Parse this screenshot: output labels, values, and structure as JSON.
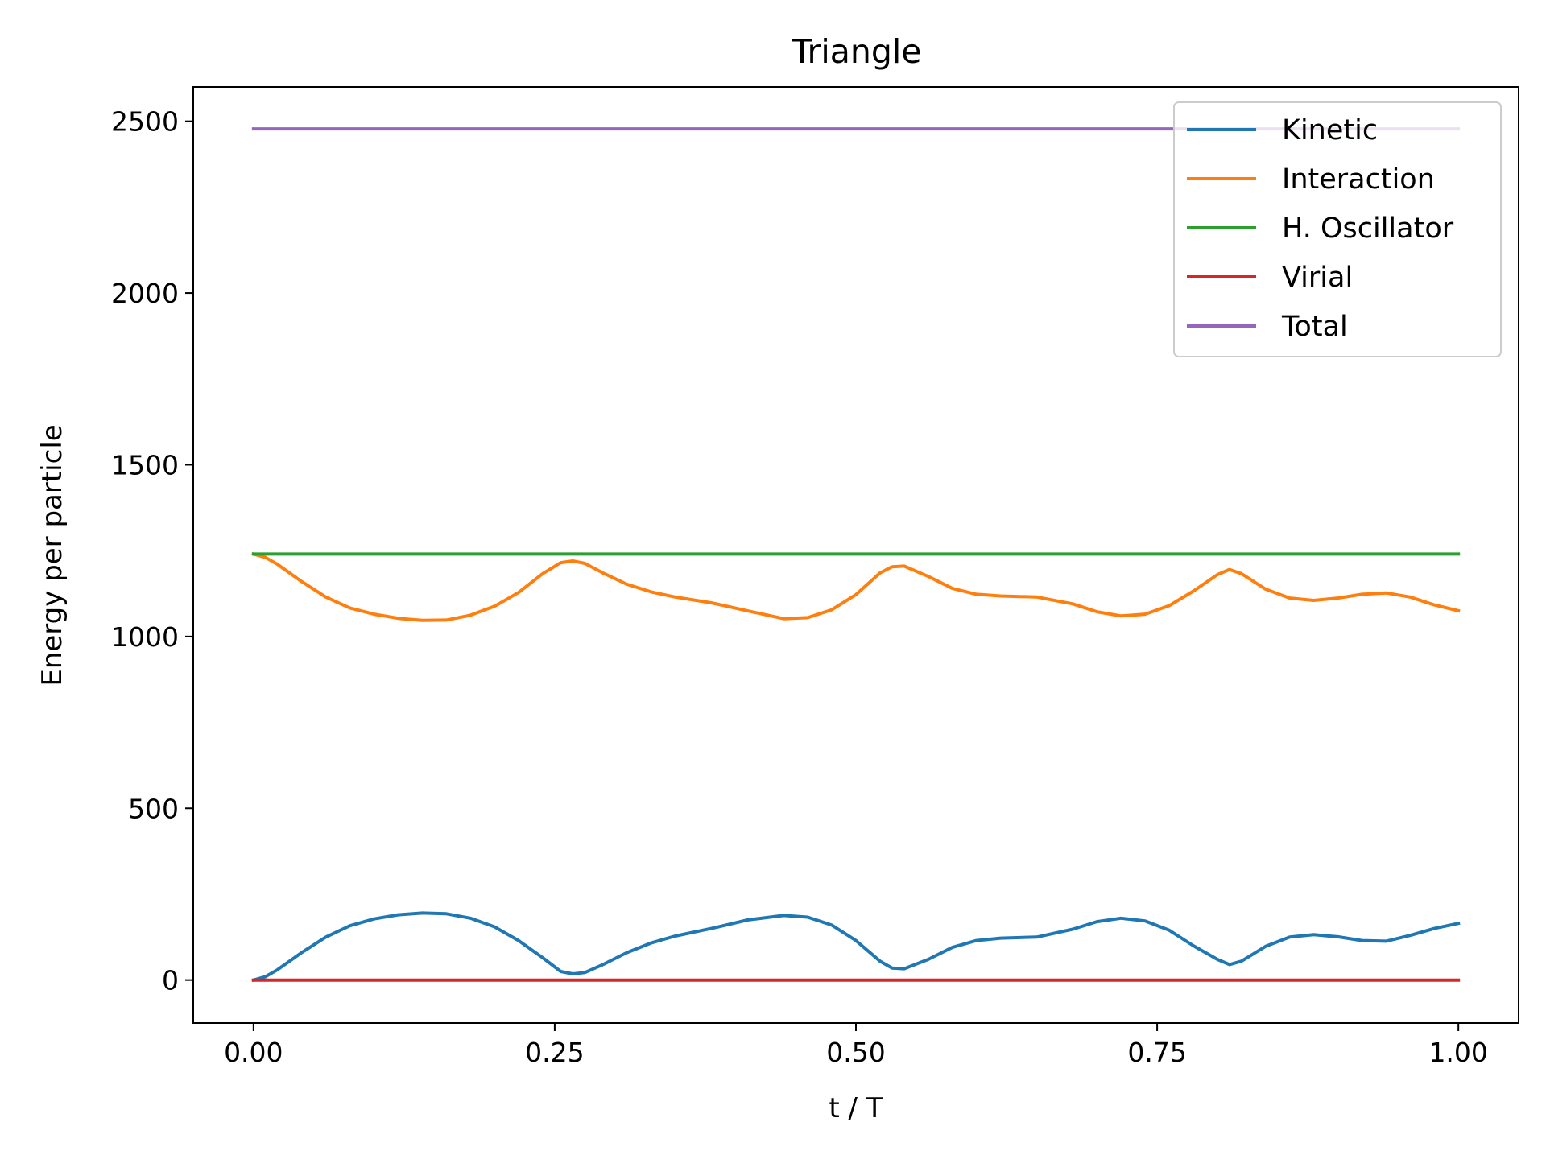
{
  "chart_data": {
    "type": "line",
    "title": "Triangle",
    "xlabel": "t / T",
    "ylabel": "Energy per particle",
    "xlim": [
      -0.05,
      1.05
    ],
    "ylim": [
      -125,
      2600
    ],
    "xticks": [
      0.0,
      0.25,
      0.5,
      0.75,
      1.0
    ],
    "xtick_labels": [
      "0.00",
      "0.25",
      "0.50",
      "0.75",
      "1.00"
    ],
    "yticks": [
      0,
      500,
      1000,
      1500,
      2000,
      2500
    ],
    "ytick_labels": [
      "0",
      "500",
      "1000",
      "1500",
      "2000",
      "2500"
    ],
    "grid": false,
    "legend_position": "top-right",
    "series": [
      {
        "name": "Kinetic",
        "color": "#1f77b4",
        "x": [
          0.0,
          0.01,
          0.02,
          0.04,
          0.06,
          0.08,
          0.1,
          0.12,
          0.14,
          0.16,
          0.18,
          0.2,
          0.22,
          0.24,
          0.255,
          0.265,
          0.275,
          0.29,
          0.31,
          0.33,
          0.35,
          0.38,
          0.41,
          0.44,
          0.46,
          0.48,
          0.5,
          0.52,
          0.53,
          0.54,
          0.56,
          0.58,
          0.6,
          0.62,
          0.65,
          0.68,
          0.7,
          0.72,
          0.74,
          0.76,
          0.78,
          0.8,
          0.81,
          0.82,
          0.84,
          0.86,
          0.88,
          0.9,
          0.92,
          0.94,
          0.96,
          0.98,
          1.0
        ],
        "y": [
          0,
          10,
          30,
          80,
          125,
          158,
          178,
          190,
          195,
          193,
          180,
          155,
          115,
          65,
          25,
          18,
          22,
          45,
          80,
          108,
          128,
          150,
          175,
          188,
          183,
          160,
          115,
          55,
          35,
          33,
          60,
          95,
          115,
          122,
          125,
          148,
          170,
          180,
          172,
          145,
          100,
          60,
          45,
          55,
          98,
          125,
          132,
          126,
          115,
          113,
          130,
          150,
          165
        ]
      },
      {
        "name": "Interaction",
        "color": "#ff7f0e",
        "x": [
          0.0,
          0.01,
          0.02,
          0.04,
          0.06,
          0.08,
          0.1,
          0.12,
          0.14,
          0.16,
          0.18,
          0.2,
          0.22,
          0.24,
          0.255,
          0.265,
          0.275,
          0.29,
          0.31,
          0.33,
          0.35,
          0.38,
          0.41,
          0.44,
          0.46,
          0.48,
          0.5,
          0.52,
          0.53,
          0.54,
          0.56,
          0.58,
          0.6,
          0.62,
          0.65,
          0.68,
          0.7,
          0.72,
          0.74,
          0.76,
          0.78,
          0.8,
          0.81,
          0.82,
          0.84,
          0.86,
          0.88,
          0.9,
          0.92,
          0.94,
          0.96,
          0.98,
          1.0
        ],
        "y": [
          1240,
          1230,
          1210,
          1160,
          1115,
          1083,
          1065,
          1053,
          1047,
          1048,
          1062,
          1088,
          1128,
          1183,
          1215,
          1220,
          1213,
          1185,
          1152,
          1130,
          1115,
          1098,
          1075,
          1052,
          1055,
          1078,
          1122,
          1185,
          1203,
          1205,
          1175,
          1140,
          1123,
          1118,
          1115,
          1095,
          1072,
          1060,
          1065,
          1090,
          1132,
          1180,
          1195,
          1183,
          1138,
          1112,
          1105,
          1112,
          1123,
          1127,
          1115,
          1092,
          1075
        ]
      },
      {
        "name": "H. Oscillator",
        "color": "#2ca02c",
        "x": [
          0.0,
          1.0
        ],
        "y": [
          1240,
          1240
        ]
      },
      {
        "name": "Virial",
        "color": "#d62728",
        "x": [
          0.0,
          1.0
        ],
        "y": [
          0,
          0
        ]
      },
      {
        "name": "Total",
        "color": "#9467bd",
        "x": [
          0.0,
          1.0
        ],
        "y": [
          2478,
          2478
        ]
      }
    ]
  }
}
